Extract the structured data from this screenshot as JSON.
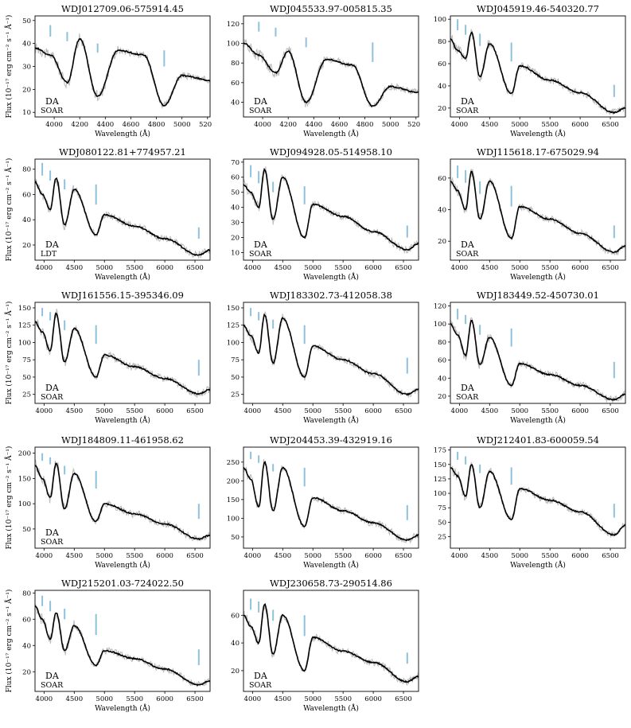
{
  "figure": {
    "ylabel": "Flux (10$^{-17}$ erg cm$^{-2}$ s$^{-1}$ Å$^{-1}$)",
    "ylabel_text": "Flux (10⁻¹⁷ erg cm⁻² s⁻¹ Å⁻¹)"
  },
  "chart_data": [
    {
      "type": "line",
      "title": "WDJ012709.06-575914.45",
      "xlabel": "Wavelength (Å)",
      "ylabel": "Flux (10⁻¹⁷ erg cm⁻² s⁻¹ Å⁻¹)",
      "spectral_type": "DA",
      "telescope": "SOAR",
      "xlim": [
        3850,
        5220
      ],
      "ylim": [
        8,
        52
      ],
      "xticks": [
        4000,
        4200,
        4400,
        4600,
        4800,
        5000,
        5200
      ],
      "yticks": [
        10,
        20,
        30,
        40,
        50
      ],
      "grid": false,
      "lines": [
        [
          3970,
          43,
          48
        ],
        [
          4102,
          41,
          45
        ],
        [
          4340,
          36,
          40
        ],
        [
          4861,
          30,
          37
        ]
      ],
      "x": [
        3850,
        3970,
        4102,
        4200,
        4340,
        4500,
        4700,
        4861,
        5000,
        5220
      ],
      "values": [
        38,
        35,
        23,
        42,
        17,
        37,
        35,
        13,
        26,
        24
      ]
    },
    {
      "type": "line",
      "title": "WDJ045533.97-005815.35",
      "xlabel": "Wavelength (Å)",
      "ylabel": "Flux (10⁻¹⁷ erg cm⁻² s⁻¹ Å⁻¹)",
      "spectral_type": "DA",
      "telescope": "SOAR",
      "xlim": [
        3850,
        5220
      ],
      "ylim": [
        25,
        128
      ],
      "xticks": [
        4000,
        4200,
        4400,
        4600,
        4800,
        5000,
        5200
      ],
      "yticks": [
        40,
        60,
        80,
        100,
        120
      ],
      "grid": false,
      "lines": [
        [
          3970,
          112,
          122
        ],
        [
          4102,
          107,
          116
        ],
        [
          4340,
          96,
          106
        ],
        [
          4861,
          81,
          101
        ]
      ],
      "x": [
        3850,
        3970,
        4102,
        4200,
        4340,
        4500,
        4700,
        4861,
        5000,
        5220
      ],
      "values": [
        100,
        88,
        70,
        92,
        40,
        84,
        78,
        36,
        56,
        50
      ]
    },
    {
      "type": "line",
      "title": "WDJ045919.46-540320.77",
      "xlabel": "Wavelength (Å)",
      "ylabel": "Flux (10⁻¹⁷ erg cm⁻² s⁻¹ Å⁻¹)",
      "spectral_type": "DA",
      "telescope": "SOAR",
      "xlim": [
        3850,
        6750
      ],
      "ylim": [
        12,
        103
      ],
      "xticks": [
        4000,
        4500,
        5000,
        5500,
        6000,
        6500
      ],
      "yticks": [
        20,
        40,
        60,
        80,
        100
      ],
      "grid": false,
      "lines": [
        [
          3970,
          90,
          100
        ],
        [
          4102,
          86,
          95
        ],
        [
          4340,
          76,
          87
        ],
        [
          4861,
          62,
          79
        ],
        [
          6563,
          30,
          41
        ]
      ],
      "x": [
        3850,
        3970,
        4102,
        4200,
        4340,
        4500,
        4861,
        5000,
        5500,
        6000,
        6563,
        6750
      ],
      "values": [
        82,
        72,
        65,
        88,
        48,
        78,
        33,
        58,
        45,
        34,
        16,
        20
      ]
    },
    {
      "type": "line",
      "title": "WDJ080122.81+774957.21",
      "xlabel": "Wavelength (Å)",
      "ylabel": "Flux (10⁻¹⁷ erg cm⁻² s⁻¹ Å⁻¹)",
      "spectral_type": "DA",
      "telescope": "LDT",
      "xlim": [
        3850,
        6750
      ],
      "ylim": [
        8,
        88
      ],
      "xticks": [
        4000,
        4500,
        5000,
        5500,
        6000,
        6500
      ],
      "yticks": [
        20,
        40,
        60,
        80
      ],
      "grid": false,
      "lines": [
        [
          3970,
          75,
          85
        ],
        [
          4102,
          71,
          79
        ],
        [
          4340,
          64,
          72
        ],
        [
          4861,
          52,
          68
        ],
        [
          6563,
          25,
          34
        ]
      ],
      "x": [
        3850,
        3970,
        4102,
        4200,
        4340,
        4500,
        4861,
        5000,
        5500,
        6000,
        6563,
        6750
      ],
      "values": [
        70,
        60,
        48,
        73,
        36,
        64,
        28,
        44,
        35,
        25,
        12,
        16
      ]
    },
    {
      "type": "line",
      "title": "WDJ094928.05-514958.10",
      "xlabel": "Wavelength (Å)",
      "ylabel": "Flux (10⁻¹⁷ erg cm⁻² s⁻¹ Å⁻¹)",
      "spectral_type": "DA",
      "telescope": "SOAR",
      "xlim": [
        3850,
        6750
      ],
      "ylim": [
        5,
        72
      ],
      "xticks": [
        4000,
        4500,
        5000,
        5500,
        6000,
        6500
      ],
      "yticks": [
        10,
        20,
        30,
        40,
        50,
        60,
        70
      ],
      "grid": false,
      "lines": [
        [
          3970,
          60,
          68
        ],
        [
          4102,
          56,
          64
        ],
        [
          4340,
          50,
          57
        ],
        [
          4861,
          42,
          54
        ],
        [
          6563,
          20,
          28
        ]
      ],
      "x": [
        3850,
        3970,
        4102,
        4200,
        4340,
        4500,
        4861,
        5000,
        5500,
        6000,
        6563,
        6750
      ],
      "values": [
        55,
        50,
        40,
        65,
        32,
        60,
        20,
        42,
        34,
        24,
        12,
        16
      ]
    },
    {
      "type": "line",
      "title": "WDJ115618.17-675029.94",
      "xlabel": "Wavelength (Å)",
      "ylabel": "Flux (10⁻¹⁷ erg cm⁻² s⁻¹ Å⁻¹)",
      "spectral_type": "DA",
      "telescope": "SOAR",
      "xlim": [
        3850,
        6750
      ],
      "ylim": [
        8,
        72
      ],
      "xticks": [
        4000,
        4500,
        5000,
        5500,
        6000,
        6500
      ],
      "yticks": [
        20,
        40,
        60
      ],
      "grid": false,
      "lines": [
        [
          3970,
          60,
          68
        ],
        [
          4102,
          57,
          65
        ],
        [
          4340,
          50,
          58
        ],
        [
          4861,
          42,
          55
        ],
        [
          6563,
          22,
          30
        ]
      ],
      "x": [
        3850,
        3970,
        4102,
        4200,
        4340,
        4500,
        4861,
        5000,
        5500,
        6000,
        6563,
        6750
      ],
      "values": [
        58,
        52,
        40,
        64,
        34,
        58,
        22,
        42,
        34,
        25,
        13,
        17
      ]
    },
    {
      "type": "line",
      "title": "WDJ161556.15-395346.09",
      "xlabel": "Wavelength (Å)",
      "ylabel": "Flux (10⁻¹⁷ erg cm⁻² s⁻¹ Å⁻¹)",
      "spectral_type": "DA",
      "telescope": "SOAR",
      "xlim": [
        3850,
        6750
      ],
      "ylim": [
        12,
        158
      ],
      "xticks": [
        4000,
        4500,
        5000,
        5500,
        6000,
        6500
      ],
      "yticks": [
        25,
        50,
        75,
        100,
        125,
        150
      ],
      "grid": false,
      "lines": [
        [
          3970,
          138,
          150
        ],
        [
          4102,
          132,
          144
        ],
        [
          4340,
          118,
          132
        ],
        [
          4861,
          98,
          125
        ],
        [
          6563,
          52,
          75
        ]
      ],
      "x": [
        3850,
        3970,
        4102,
        4200,
        4340,
        4500,
        4861,
        5000,
        5500,
        6000,
        6563,
        6750
      ],
      "values": [
        130,
        115,
        88,
        142,
        72,
        120,
        50,
        82,
        65,
        48,
        26,
        32
      ]
    },
    {
      "type": "line",
      "title": "WDJ183302.73-412058.38",
      "xlabel": "Wavelength (Å)",
      "ylabel": "Flux (10⁻¹⁷ erg cm⁻² s⁻¹ Å⁻¹)",
      "spectral_type": "",
      "telescope": "",
      "xlim": [
        3850,
        6750
      ],
      "ylim": [
        12,
        158
      ],
      "xticks": [
        4000,
        4500,
        5000,
        5500,
        6000,
        6500
      ],
      "yticks": [
        25,
        50,
        75,
        100,
        125,
        150
      ],
      "grid": false,
      "lines": [
        [
          3970,
          138,
          150
        ],
        [
          4102,
          132,
          144
        ],
        [
          4340,
          120,
          133
        ],
        [
          4861,
          98,
          125
        ],
        [
          6563,
          55,
          78
        ]
      ],
      "x": [
        3850,
        3970,
        4102,
        4200,
        4340,
        4500,
        4861,
        5000,
        5500,
        6000,
        6563,
        6750
      ],
      "values": [
        125,
        110,
        85,
        140,
        70,
        135,
        50,
        95,
        75,
        55,
        25,
        32
      ]
    },
    {
      "type": "line",
      "title": "WDJ183449.52-450730.01",
      "xlabel": "Wavelength (Å)",
      "ylabel": "Flux (10⁻¹⁷ erg cm⁻² s⁻¹ Å⁻¹)",
      "spectral_type": "DA",
      "telescope": "SOAR",
      "xlim": [
        3850,
        6750
      ],
      "ylim": [
        12,
        124
      ],
      "xticks": [
        4000,
        4500,
        5000,
        5500,
        6000,
        6500
      ],
      "yticks": [
        20,
        40,
        60,
        80,
        100,
        120
      ],
      "grid": false,
      "lines": [
        [
          3970,
          105,
          117
        ],
        [
          4102,
          100,
          110
        ],
        [
          4340,
          88,
          99
        ],
        [
          4861,
          75,
          95
        ],
        [
          6563,
          40,
          58
        ]
      ],
      "x": [
        3850,
        3970,
        4102,
        4200,
        4340,
        4500,
        4861,
        5000,
        5500,
        6000,
        6563,
        6750
      ],
      "values": [
        100,
        88,
        65,
        104,
        55,
        85,
        32,
        56,
        44,
        32,
        16,
        22
      ]
    },
    {
      "type": "line",
      "title": "WDJ184809.11-461958.62",
      "xlabel": "Wavelength (Å)",
      "ylabel": "Flux (10⁻¹⁷ erg cm⁻² s⁻¹ Å⁻¹)",
      "spectral_type": "DA",
      "telescope": "SOAR",
      "xlim": [
        3850,
        6750
      ],
      "ylim": [
        12,
        212
      ],
      "xticks": [
        4000,
        4500,
        5000,
        5500,
        6000,
        6500
      ],
      "yticks": [
        50,
        100,
        150,
        200
      ],
      "grid": false,
      "lines": [
        [
          3970,
          185,
          200
        ],
        [
          4102,
          178,
          192
        ],
        [
          4340,
          158,
          175
        ],
        [
          4861,
          130,
          165
        ],
        [
          6563,
          70,
          100
        ]
      ],
      "x": [
        3850,
        3970,
        4102,
        4200,
        4340,
        4500,
        4861,
        5000,
        5500,
        6000,
        6563,
        6750
      ],
      "values": [
        175,
        150,
        112,
        180,
        90,
        160,
        65,
        100,
        80,
        60,
        30,
        38
      ]
    },
    {
      "type": "line",
      "title": "WDJ204453.39-432919.16",
      "xlabel": "Wavelength (Å)",
      "ylabel": "Flux (10⁻¹⁷ erg cm⁻² s⁻¹ Å⁻¹)",
      "spectral_type": "",
      "telescope": "",
      "xlim": [
        3850,
        6750
      ],
      "ylim": [
        20,
        290
      ],
      "xticks": [
        4000,
        4500,
        5000,
        5500,
        6000,
        6500
      ],
      "yticks": [
        50,
        100,
        150,
        200,
        250
      ],
      "grid": false,
      "lines": [
        [
          3970,
          258,
          278
        ],
        [
          4102,
          248,
          268
        ],
        [
          4340,
          225,
          245
        ],
        [
          4861,
          185,
          235
        ],
        [
          6563,
          95,
          135
        ]
      ],
      "x": [
        3850,
        3970,
        4102,
        4200,
        4340,
        4500,
        4861,
        5000,
        5500,
        6000,
        6563,
        6750
      ],
      "values": [
        235,
        205,
        130,
        250,
        120,
        235,
        78,
        155,
        120,
        88,
        42,
        55
      ]
    },
    {
      "type": "line",
      "title": "WDJ212401.83-600059.54",
      "xlabel": "Wavelength (Å)",
      "ylabel": "Flux (10⁻¹⁷ erg cm⁻² s⁻¹ Å⁻¹)",
      "spectral_type": "",
      "telescope": "",
      "xlim": [
        3850,
        6750
      ],
      "ylim": [
        5,
        180
      ],
      "xticks": [
        4000,
        4500,
        5000,
        5500,
        6000,
        6500
      ],
      "yticks": [
        25,
        50,
        75,
        100,
        125,
        150,
        175
      ],
      "grid": false,
      "lines": [
        [
          3970,
          158,
          172
        ],
        [
          4102,
          150,
          164
        ],
        [
          4340,
          135,
          150
        ],
        [
          4861,
          115,
          145
        ],
        [
          6563,
          58,
          82
        ]
      ],
      "x": [
        3850,
        3970,
        4102,
        4200,
        4340,
        4500,
        4861,
        5000,
        5500,
        6000,
        6563,
        6750
      ],
      "values": [
        145,
        130,
        95,
        150,
        75,
        138,
        55,
        108,
        88,
        68,
        28,
        45
      ]
    },
    {
      "type": "line",
      "title": "WDJ215201.03-724022.50",
      "xlabel": "Wavelength (Å)",
      "ylabel": "Flux (10⁻¹⁷ erg cm⁻² s⁻¹ Å⁻¹)",
      "spectral_type": "DA",
      "telescope": "SOAR",
      "xlim": [
        3850,
        6750
      ],
      "ylim": [
        5,
        82
      ],
      "xticks": [
        4000,
        4500,
        5000,
        5500,
        6000,
        6500
      ],
      "yticks": [
        20,
        40,
        60,
        80
      ],
      "grid": false,
      "lines": [
        [
          3970,
          70,
          78
        ],
        [
          4102,
          66,
          74
        ],
        [
          4340,
          60,
          68
        ],
        [
          4861,
          48,
          64
        ],
        [
          6563,
          25,
          37
        ]
      ],
      "x": [
        3850,
        3970,
        4102,
        4200,
        4340,
        4500,
        4861,
        5000,
        5500,
        6000,
        6563,
        6750
      ],
      "values": [
        70,
        60,
        45,
        65,
        36,
        55,
        25,
        36,
        30,
        22,
        10,
        13
      ]
    },
    {
      "type": "line",
      "title": "WDJ230658.73-290514.86",
      "xlabel": "Wavelength (Å)",
      "ylabel": "",
      "spectral_type": "DA",
      "telescope": "SOAR",
      "xlim": [
        3850,
        6750
      ],
      "ylim": [
        5,
        78
      ],
      "xticks": [
        4000,
        4500,
        5000,
        5500,
        6000,
        6500
      ],
      "yticks": [
        20,
        40,
        60
      ],
      "grid": false,
      "lines": [
        [
          3970,
          64,
          72
        ],
        [
          4102,
          62,
          70
        ],
        [
          4340,
          56,
          64
        ],
        [
          4861,
          45,
          60
        ],
        [
          6563,
          25,
          33
        ]
      ],
      "x": [
        3850,
        3970,
        4102,
        4200,
        4340,
        4500,
        4861,
        5000,
        5500,
        6000,
        6563,
        6750
      ],
      "values": [
        60,
        52,
        40,
        68,
        32,
        60,
        20,
        44,
        34,
        26,
        12,
        16
      ]
    }
  ]
}
